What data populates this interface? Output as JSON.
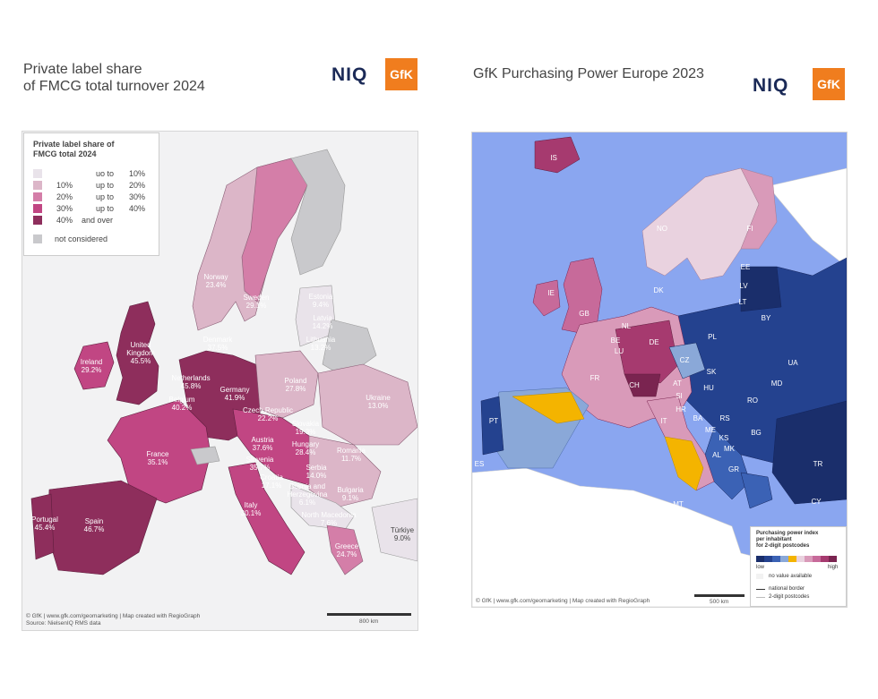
{
  "left_panel": {
    "title_line1": "Private label share",
    "title_line2": "of FMCG total turnover 2024",
    "logo_niq": "NIQ",
    "logo_gfk": "GfK",
    "legend": {
      "title_line1": "Private label share of",
      "title_line2": "FMCG total 2024",
      "rows": [
        {
          "lo": "",
          "mid": "",
          "hi_prefix": "uo to",
          "hi": "10%",
          "color": "#e9e3ea"
        },
        {
          "lo": "10%",
          "mid": "up to",
          "hi": "20%",
          "color": "#dcb6c8"
        },
        {
          "lo": "20%",
          "mid": "up to",
          "hi": "30%",
          "color": "#d47ea8"
        },
        {
          "lo": "30%",
          "mid": "up to",
          "hi": "40%",
          "color": "#c14683"
        },
        {
          "lo": "40%",
          "mid": "and over",
          "hi": "",
          "color": "#8e2e5c"
        }
      ],
      "not_considered": "not considered",
      "not_considered_color": "#c9c9cc"
    },
    "countries": [
      {
        "name": "Norway",
        "value": "23.4%"
      },
      {
        "name": "Sweden",
        "value": "29.1%"
      },
      {
        "name": "Estonia",
        "value": "9.4%"
      },
      {
        "name": "Latvia",
        "value": "14.2%"
      },
      {
        "name": "Lithuania",
        "value": "13.2%"
      },
      {
        "name": "Denmark",
        "value": "37.5%"
      },
      {
        "name": "United Kingdom",
        "value": "45.5%"
      },
      {
        "name": "Ireland",
        "value": "29.2%"
      },
      {
        "name": "Netherlands",
        "value": "45.8%"
      },
      {
        "name": "Belgium",
        "value": "40.2%"
      },
      {
        "name": "Germany",
        "value": "41.9%"
      },
      {
        "name": "Poland",
        "value": "27.8%"
      },
      {
        "name": "Czech Republic",
        "value": "22.2%"
      },
      {
        "name": "Slovakia",
        "value": "19.3%"
      },
      {
        "name": "Ukraine",
        "value": "13.0%"
      },
      {
        "name": "France",
        "value": "35.1%"
      },
      {
        "name": "Austria",
        "value": "37.6%"
      },
      {
        "name": "Hungary",
        "value": "28.4%"
      },
      {
        "name": "Romania",
        "value": "11.7%"
      },
      {
        "name": "Slovenia",
        "value": "35.7%"
      },
      {
        "name": "Croatia",
        "value": "17.1%"
      },
      {
        "name": "Serbia",
        "value": "14.0%"
      },
      {
        "name": "Bosnia and Herzegovina",
        "value": "6.1%"
      },
      {
        "name": "Bulgaria",
        "value": "9.1%"
      },
      {
        "name": "Italy",
        "value": "30.1%"
      },
      {
        "name": "North Macedonia",
        "value": "7.6%"
      },
      {
        "name": "Portugal",
        "value": "45.4%"
      },
      {
        "name": "Spain",
        "value": "46.7%"
      },
      {
        "name": "Greece",
        "value": "24.7%"
      },
      {
        "name": "Türkiye",
        "value": "9.0%"
      }
    ],
    "footer_line1": "© GfK | www.gfk.com/geomarketing | Map created with RegioGraph",
    "footer_line2": "Source: NielsenIQ RMS data",
    "scale_label": "800 km"
  },
  "right_panel": {
    "title": "GfK Purchasing Power Europe 2023",
    "logo_niq": "NIQ",
    "logo_gfk": "GfK",
    "country_codes": [
      "IS",
      "NO",
      "FI",
      "EE",
      "LV",
      "LT",
      "BY",
      "IE",
      "GB",
      "DK",
      "NL",
      "BE",
      "LU",
      "DE",
      "PL",
      "UA",
      "FR",
      "CH",
      "AT",
      "CZ",
      "SK",
      "HU",
      "MD",
      "RO",
      "SI",
      "HR",
      "BA",
      "RS",
      "ME",
      "KS",
      "MK",
      "AL",
      "BG",
      "GR",
      "TR",
      "PT",
      "ES",
      "IT",
      "MT",
      "CY"
    ],
    "legend": {
      "title_line1": "Purchasing power index",
      "title_line2": "per inhabitant",
      "title_line3": "for 2-digit postcodes",
      "ramp_colors": [
        "#1a2e6b",
        "#24428f",
        "#3b62b5",
        "#8aa8d8",
        "#f4b400",
        "#e9d2df",
        "#d99ab9",
        "#c76a9a",
        "#a63a6f",
        "#7a2450"
      ],
      "low": "low",
      "high": "high",
      "no_value": "no value available",
      "national_border": "national border",
      "postcodes": "2-digit postcodes"
    },
    "footer": "© GfK | www.gfk.com/geomarketing | Map created with RegioGraph",
    "scale_label": "500 km"
  }
}
